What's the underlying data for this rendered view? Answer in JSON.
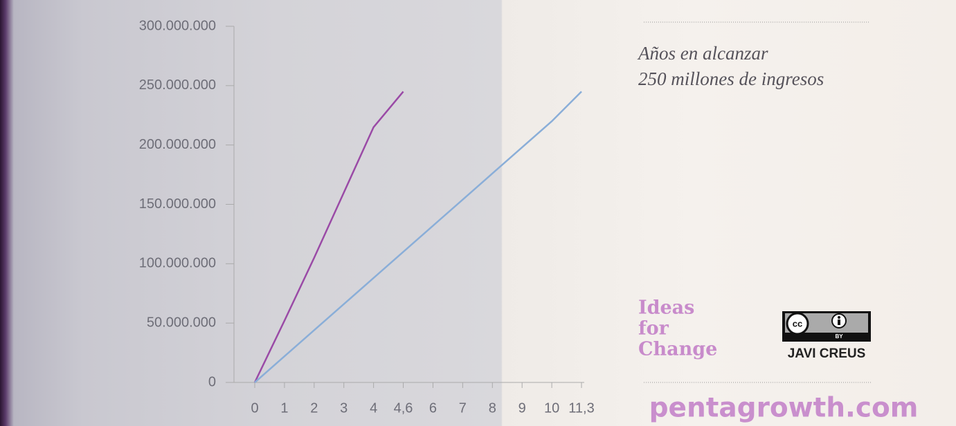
{
  "chart_data": {
    "type": "line",
    "title": "Años  en alcanzar",
    "subtitle": "250 millones de ingresos",
    "categories": [
      "0",
      "1",
      "2",
      "3",
      "4",
      "4,6",
      "6",
      "7",
      "8",
      "9",
      "10",
      "11,3"
    ],
    "series": [
      {
        "color": "#9a4aa6",
        "values": [
          0,
          52000000,
          105000000,
          160000000,
          215000000,
          245000000,
          null,
          null,
          null,
          null,
          null,
          null
        ]
      },
      {
        "color": "#8aaed8",
        "values": [
          0,
          22000000,
          44000000,
          66000000,
          88000000,
          110000000,
          132000000,
          154000000,
          176000000,
          198000000,
          220000000,
          245000000
        ]
      }
    ],
    "ylim": [
      0,
      300000000
    ],
    "yticks": [
      0,
      {
        "value": 50000000,
        "label": "50.000.000"
      },
      {
        "value": 100000000,
        "label": "100.000.000"
      },
      {
        "value": 150000000,
        "label": "150.000.000"
      },
      {
        "value": 200000000,
        "label": "200.000.000"
      },
      {
        "value": 250000000,
        "label": "250.000.000"
      },
      {
        "value": 300000000,
        "label": "300.000.000"
      }
    ],
    "grid": false
  },
  "branding": {
    "logo": [
      "Ideas",
      "for",
      "Change"
    ],
    "license_icon": "cc",
    "license_badge": "BY",
    "license_author": "JAVI CREUS",
    "website": "pentagrowth.com"
  }
}
